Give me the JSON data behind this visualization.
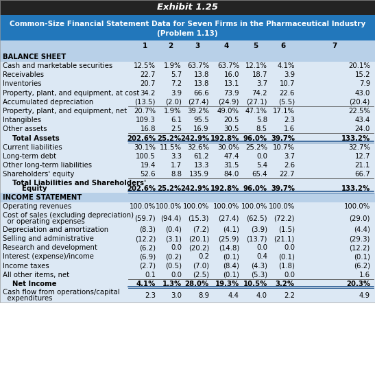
{
  "title1": "Exhibit 1.25",
  "title2": "Common-Size Financial Statement Data for Seven Firms in the Pharmaceutical Industry",
  "title3": "(Problem 1.13)",
  "title1_bg": "#232323",
  "title2_bg": "#2277bb",
  "header_bg": "#b8d0e8",
  "row_bg": "#dce8f4",
  "col_headers": [
    "1",
    "2",
    "3",
    "4",
    "5",
    "6",
    "7"
  ],
  "sections": [
    {
      "label": "BALANCE SHEET",
      "bold": true,
      "type": "section_header",
      "indent": 0
    },
    {
      "label": "Cash and marketable securities",
      "bold": false,
      "type": "data",
      "indent": 0,
      "values": [
        "12.5%",
        "1.9%",
        "63.7%",
        "63.7%",
        "12.1%",
        "4.1%",
        "20.1%"
      ]
    },
    {
      "label": "Receivables",
      "bold": false,
      "type": "data",
      "indent": 0,
      "values": [
        "22.7",
        "5.7",
        "13.8",
        "16.0",
        "18.7",
        "3.9",
        "15.2"
      ]
    },
    {
      "label": "Inventories",
      "bold": false,
      "type": "data",
      "indent": 0,
      "values": [
        "20.7",
        "7.2",
        "13.8",
        "13.1",
        "3.7",
        "10.7",
        "7.9"
      ]
    },
    {
      "label": "Property, plant, and equipment, at cost",
      "bold": false,
      "type": "data",
      "indent": 0,
      "values": [
        "34.2",
        "3.9",
        "66.6",
        "73.9",
        "74.2",
        "22.6",
        "43.0"
      ]
    },
    {
      "label": "Accumulated depreciation",
      "bold": false,
      "type": "data",
      "indent": 0,
      "underline_values": true,
      "values": [
        "(13.5)",
        "(2.0)",
        "(27.4)",
        "(24.9)",
        "(27.1)",
        "(5.5)",
        "(20.4)"
      ]
    },
    {
      "label": "Property, plant, and equipment, net",
      "bold": false,
      "type": "data",
      "indent": 0,
      "values": [
        "20.7%",
        "1.9%",
        "39.2%",
        "49.0%",
        "47.1%",
        "17.1%",
        "22.5%"
      ]
    },
    {
      "label": "Intangibles",
      "bold": false,
      "type": "data",
      "indent": 0,
      "values": [
        "109.3",
        "6.1",
        "95.5",
        "20.5",
        "5.8",
        "2.3",
        "43.4"
      ]
    },
    {
      "label": "Other assets",
      "bold": false,
      "type": "data",
      "indent": 0,
      "underline_values": true,
      "values": [
        "16.8",
        "2.5",
        "16.9",
        "30.5",
        "8.5",
        "1.6",
        "24.0"
      ]
    },
    {
      "label": "    Total Assets",
      "bold": true,
      "type": "total",
      "indent": 4,
      "values": [
        "202.6%",
        "25.2%",
        "242.9%",
        "192.8%",
        "96.0%",
        "39.7%",
        "133.2%"
      ],
      "double_underline": true
    },
    {
      "label": "Current liabilities",
      "bold": false,
      "type": "data",
      "indent": 0,
      "values": [
        "30.1%",
        "11.5%",
        "32.6%",
        "30.0%",
        "25.2%",
        "10.7%",
        "32.7%"
      ]
    },
    {
      "label": "Long-term debt",
      "bold": false,
      "type": "data",
      "indent": 0,
      "values": [
        "100.5",
        "3.3",
        "61.2",
        "47.4",
        "0.0",
        "3.7",
        "12.7"
      ]
    },
    {
      "label": "Other long-term liabilities",
      "bold": false,
      "type": "data",
      "indent": 0,
      "values": [
        "19.4",
        "1.7",
        "13.3",
        "31.5",
        "5.4",
        "2.6",
        "21.1"
      ]
    },
    {
      "label": "Shareholders' equity",
      "bold": false,
      "type": "data",
      "indent": 0,
      "underline_values": true,
      "values": [
        "52.6",
        "8.8",
        "135.9",
        "84.0",
        "65.4",
        "22.7",
        "66.7"
      ]
    },
    {
      "label": "    Total Liabilities and Shareholders'\n        Equity",
      "bold": true,
      "type": "total",
      "indent": 4,
      "multiline": true,
      "values": [
        "202.6%",
        "25.2%",
        "242.9%",
        "192.8%",
        "96.0%",
        "39.7%",
        "133.2%"
      ],
      "double_underline": true
    },
    {
      "label": "INCOME STATEMENT",
      "bold": true,
      "type": "section_header",
      "indent": 0
    },
    {
      "label": "Operating revenues",
      "bold": false,
      "type": "data",
      "indent": 0,
      "values": [
        "100.0%",
        "100.0%",
        "100.0%",
        "100.0%",
        "100.0%",
        "100.0%",
        "100.0%"
      ]
    },
    {
      "label": "Cost of sales (excluding depreciation)\n  or operating expenses",
      "bold": false,
      "type": "data",
      "indent": 0,
      "multiline": true,
      "values": [
        "(59.7)",
        "(94.4)",
        "(15.3)",
        "(27.4)",
        "(62.5)",
        "(72.2)",
        "(29.0)"
      ]
    },
    {
      "label": "Depreciation and amortization",
      "bold": false,
      "type": "data",
      "indent": 0,
      "values": [
        "(8.3)",
        "(0.4)",
        "(7.2)",
        "(4.1)",
        "(3.9)",
        "(1.5)",
        "(4.4)"
      ]
    },
    {
      "label": "Selling and administrative",
      "bold": false,
      "type": "data",
      "indent": 0,
      "values": [
        "(12.2)",
        "(3.1)",
        "(20.1)",
        "(25.9)",
        "(13.7)",
        "(21.1)",
        "(29.3)"
      ]
    },
    {
      "label": "Research and development",
      "bold": false,
      "type": "data",
      "indent": 0,
      "values": [
        "(6.2)",
        "0.0",
        "(20.2)",
        "(14.8)",
        "0.0",
        "0.0",
        "(12.2)"
      ]
    },
    {
      "label": "Interest (expense)/income",
      "bold": false,
      "type": "data",
      "indent": 0,
      "values": [
        "(6.9)",
        "(0.2)",
        "0.2",
        "(0.1)",
        "0.4",
        "(0.1)",
        "(0.1)"
      ]
    },
    {
      "label": "Income taxes",
      "bold": false,
      "type": "data",
      "indent": 0,
      "values": [
        "(2.7)",
        "(0.5)",
        "(7.0)",
        "(8.4)",
        "(4.3)",
        "(1.8)",
        "(6.2)"
      ]
    },
    {
      "label": "All other items, net",
      "bold": false,
      "type": "data",
      "indent": 0,
      "underline_values": true,
      "values": [
        "0.1",
        "0.0",
        "(2.5)",
        "(0.1)",
        "(5.3)",
        "0.0",
        "1.6"
      ]
    },
    {
      "label": "    Net Income",
      "bold": true,
      "type": "total",
      "indent": 4,
      "values": [
        "4.1%",
        "1.3%",
        "28.0%",
        "19.3%",
        "10.5%",
        "3.2%",
        "20.3%"
      ],
      "double_underline": true
    },
    {
      "label": "Cash flow from operations/capital\n  expenditures",
      "bold": false,
      "type": "data",
      "indent": 0,
      "multiline": true,
      "values": [
        "2.3",
        "3.0",
        "8.9",
        "4.4",
        "4.0",
        "2.2",
        "4.9"
      ]
    }
  ]
}
